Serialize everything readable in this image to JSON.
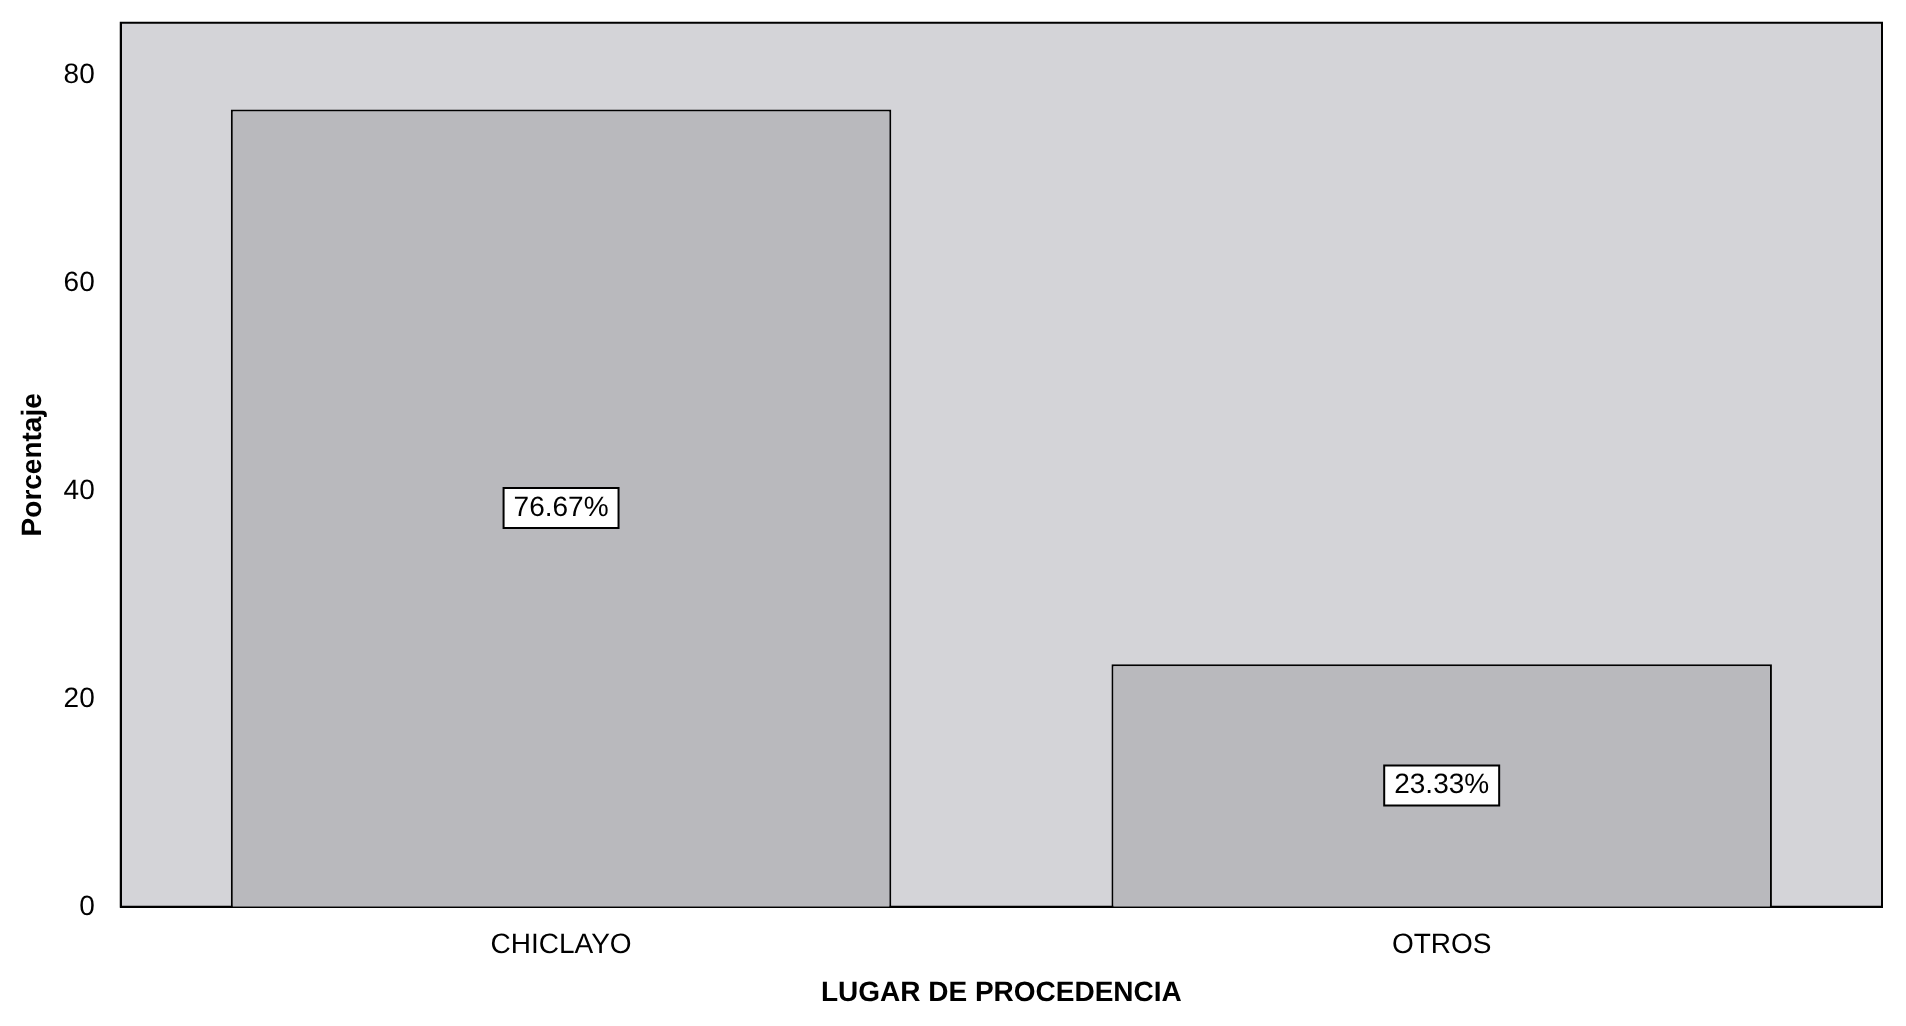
{
  "chart_data": {
    "type": "bar",
    "xlabel": "LUGAR DE PROCEDENCIA",
    "ylabel": "Porcentaje",
    "categories": [
      "CHICLAYO",
      "OTROS"
    ],
    "values": [
      76.67,
      23.33
    ],
    "value_labels": [
      "76.67%",
      "23.33%"
    ],
    "color": "#b9b9bd",
    "ylim": [
      0,
      85
    ],
    "yticks": [
      0,
      20,
      40,
      60,
      80
    ],
    "grid": false,
    "legend": false
  }
}
